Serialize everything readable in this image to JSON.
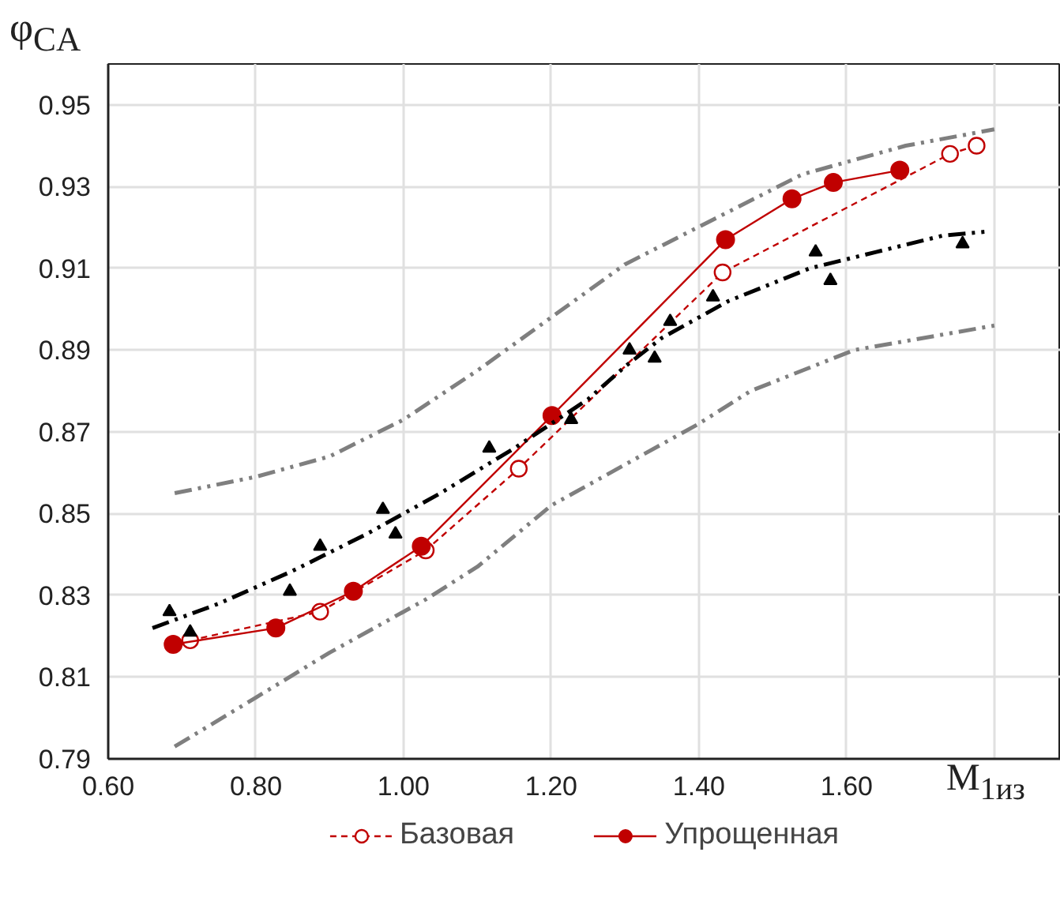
{
  "chart_data": {
    "type": "line",
    "xlabel": "M$_{1из}$",
    "ylabel": "φ$_{CA}$",
    "xlim": [
      0.6,
      1.89
    ],
    "ylim": [
      0.79,
      0.96
    ],
    "xticks": [
      {
        "value": 0.6,
        "label": "0.60"
      },
      {
        "value": 0.8,
        "label": "0.80"
      },
      {
        "value": 1.0,
        "label": "1.00"
      },
      {
        "value": 1.2,
        "label": "1.20"
      },
      {
        "value": 1.4,
        "label": "1.40"
      },
      {
        "value": 1.6,
        "label": "1.60"
      },
      {
        "value": 1.8,
        "label": null
      }
    ],
    "yticks": [
      0.79,
      0.81,
      0.83,
      0.85,
      0.87,
      0.89,
      0.91,
      0.93,
      0.95
    ],
    "grid": true,
    "legend": "bottom",
    "series": [
      {
        "name": "Базовая",
        "color": "#c00000",
        "marker": "circle_open",
        "line_style": "dotted",
        "x": [
          0.711,
          0.887,
          1.03,
          1.156,
          1.432,
          1.74,
          1.776
        ],
        "values": [
          0.819,
          0.826,
          0.841,
          0.861,
          0.909,
          0.938,
          0.94
        ]
      },
      {
        "name": "Упрощенная",
        "color": "#c00000",
        "marker": "circle",
        "line_style": "solid",
        "x": [
          0.688,
          0.827,
          0.932,
          1.024,
          1.201,
          1.436,
          1.526,
          1.582,
          1.672
        ],
        "values": [
          0.818,
          0.822,
          0.831,
          0.842,
          0.874,
          0.917,
          0.927,
          0.931,
          0.934
        ]
      },
      {
        "type": "scatter",
        "color": "#000000",
        "marker": "triangle",
        "x": [
          0.683,
          0.711,
          0.846,
          0.887,
          0.972,
          0.989,
          1.116,
          1.227,
          1.306,
          1.34,
          1.361,
          1.419,
          1.558,
          1.578,
          1.757
        ],
        "values": [
          0.826,
          0.821,
          0.831,
          0.842,
          0.851,
          0.845,
          0.866,
          0.873,
          0.89,
          0.888,
          0.897,
          0.903,
          0.914,
          0.907,
          0.916
        ]
      },
      {
        "color": "#000000",
        "marker": "none",
        "line_style": "dashed",
        "x": [
          0.66,
          0.75,
          0.85,
          0.95,
          1.05,
          1.15,
          1.25,
          1.3,
          1.35,
          1.44,
          1.55,
          1.64,
          1.73,
          1.79
        ],
        "values": [
          0.822,
          0.828,
          0.836,
          0.845,
          0.855,
          0.866,
          0.878,
          0.886,
          0.893,
          0.902,
          0.91,
          0.914,
          0.918,
          0.919
        ]
      },
      {
        "color": "#7f7f7f",
        "marker": "none",
        "line_style": "dashed",
        "x": [
          0.69,
          0.8,
          0.9,
          1.0,
          1.1,
          1.2,
          1.3,
          1.42,
          1.54,
          1.68,
          1.8
        ],
        "values": [
          0.855,
          0.859,
          0.864,
          0.873,
          0.885,
          0.898,
          0.911,
          0.922,
          0.933,
          0.94,
          0.944
        ]
      },
      {
        "color": "#7f7f7f",
        "marker": "none",
        "line_style": "dashed",
        "x": [
          0.69,
          0.8,
          0.9,
          1.03,
          1.1,
          1.2,
          1.3,
          1.4,
          1.47,
          1.61,
          1.8
        ],
        "values": [
          0.793,
          0.805,
          0.816,
          0.829,
          0.837,
          0.852,
          0.862,
          0.872,
          0.88,
          0.89,
          0.896
        ]
      }
    ]
  }
}
